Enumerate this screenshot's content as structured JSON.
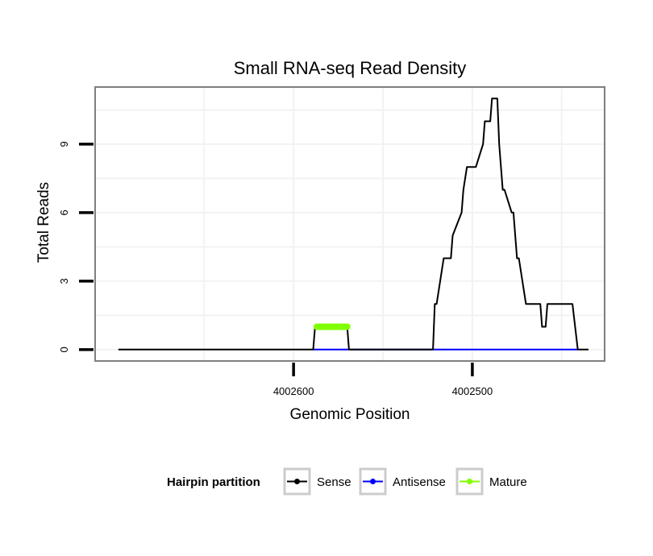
{
  "chart_data": {
    "type": "line",
    "title": "Small RNA-seq Read Density",
    "xlabel": "Genomic Position",
    "ylabel": "Total Reads",
    "x_reversed": true,
    "xlim": [
      4002711,
      4002426
    ],
    "ylim": [
      -0.5,
      11.5
    ],
    "x_ticks": [
      4002600,
      4002500
    ],
    "x_tick_labels": [
      "4002600",
      "4002500"
    ],
    "y_ticks": [
      0,
      3,
      6,
      9
    ],
    "y_tick_labels": [
      "0",
      "3",
      "6",
      "9"
    ],
    "grid": true,
    "legend": {
      "title": "Hairpin partition",
      "position": "bottom",
      "entries": [
        {
          "label": "Sense",
          "color": "#000000"
        },
        {
          "label": "Antisense",
          "color": "#0000ff"
        },
        {
          "label": "Mature",
          "color": "#80ff00"
        }
      ]
    },
    "series": [
      {
        "name": "Antisense",
        "color": "#0000ff",
        "x": [
          4002589,
          4002441
        ],
        "y": [
          0,
          0
        ]
      },
      {
        "name": "Sense",
        "color": "#000000",
        "x": [
          4002698,
          4002589,
          4002588,
          4002570,
          4002569,
          4002522,
          4002521,
          4002520,
          4002518,
          4002516,
          4002512,
          4002511,
          4002506,
          4002505,
          4002503,
          4002502,
          4002501,
          4002498,
          4002494,
          4002493,
          4002490,
          4002489,
          4002486,
          4002485,
          4002483,
          4002482,
          4002478,
          4002477,
          4002475,
          4002474,
          4002470,
          4002469,
          4002467,
          4002466,
          4002462,
          4002461,
          4002459,
          4002458,
          4002455,
          4002454,
          4002453,
          4002448,
          4002446,
          4002445,
          4002444,
          4002441,
          4002435
        ],
        "y": [
          0,
          0,
          1,
          1,
          0,
          0,
          2,
          2,
          3,
          4,
          4,
          5,
          6,
          7,
          8,
          8,
          8,
          8,
          9,
          10,
          10,
          11,
          11,
          9,
          7,
          7,
          6,
          6,
          4,
          4,
          2,
          2,
          2,
          2,
          2,
          1,
          1,
          2,
          2,
          2,
          2,
          2,
          2,
          2,
          2,
          0,
          0
        ]
      },
      {
        "name": "Mature",
        "color": "#80ff00",
        "x": [
          4002587,
          4002570
        ],
        "y": [
          1,
          1
        ]
      }
    ]
  }
}
